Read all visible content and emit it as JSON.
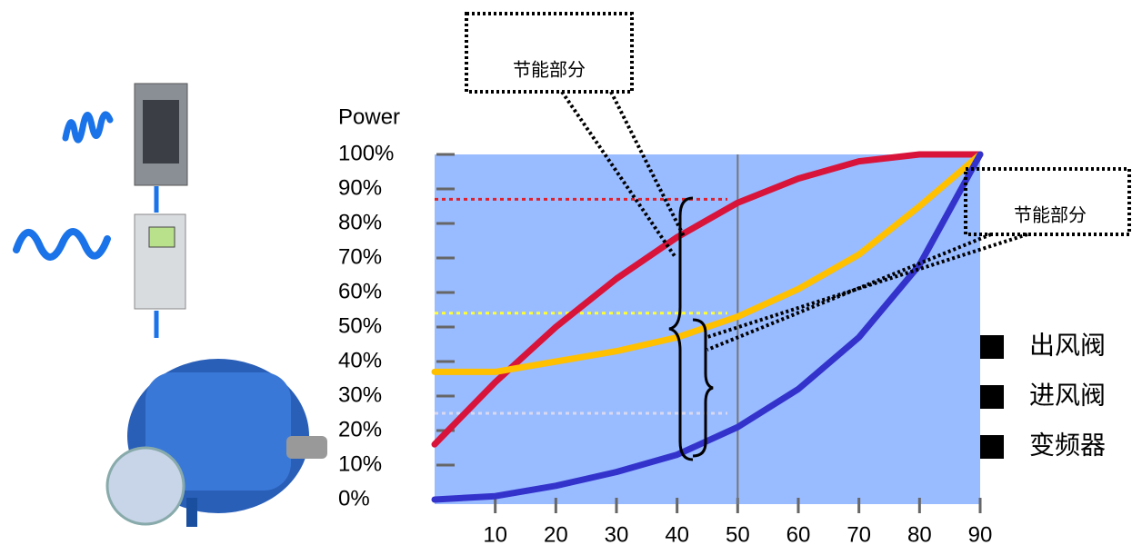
{
  "chart_data": {
    "type": "line",
    "y_axis_label": "Power",
    "x": [
      0,
      10,
      20,
      30,
      40,
      50,
      60,
      70,
      80,
      90
    ],
    "xlim": [
      0,
      90
    ],
    "xticks": [
      10,
      20,
      30,
      40,
      50,
      60,
      70,
      80,
      90
    ],
    "ylim": [
      0,
      100
    ],
    "yticks": [
      {
        "value": 0,
        "label": "0%"
      },
      {
        "value": 10,
        "label": "10%"
      },
      {
        "value": 20,
        "label": "20%"
      },
      {
        "value": 30,
        "label": "30%"
      },
      {
        "value": 40,
        "label": "40%"
      },
      {
        "value": 50,
        "label": "50%"
      },
      {
        "value": 60,
        "label": "60%"
      },
      {
        "value": 70,
        "label": "70%"
      },
      {
        "value": 80,
        "label": "80%"
      },
      {
        "value": 90,
        "label": "90%"
      },
      {
        "value": 100,
        "label": "100%"
      }
    ],
    "series": [
      {
        "name": "出风阀",
        "color": "#d8143a",
        "values": [
          16,
          34,
          50,
          64,
          76,
          86,
          93,
          98,
          100,
          100
        ]
      },
      {
        "name": "进风阀",
        "color": "#ffc000",
        "values": [
          37,
          37,
          40,
          43,
          47,
          53,
          61,
          71,
          85,
          100
        ]
      },
      {
        "name": "变频器",
        "color": "#3333cc",
        "values": [
          0,
          1,
          4,
          8,
          13,
          21,
          32,
          47,
          68,
          100
        ]
      }
    ],
    "legend_marker_color": "#000000",
    "reference_lines": [
      {
        "value": 87,
        "color": "#e0202a"
      },
      {
        "value": 54,
        "color": "#ffff33"
      },
      {
        "value": 25,
        "color": "#d8d8f0"
      }
    ],
    "vline": 50,
    "annotations": [
      "节能部分",
      "节能部分"
    ]
  }
}
